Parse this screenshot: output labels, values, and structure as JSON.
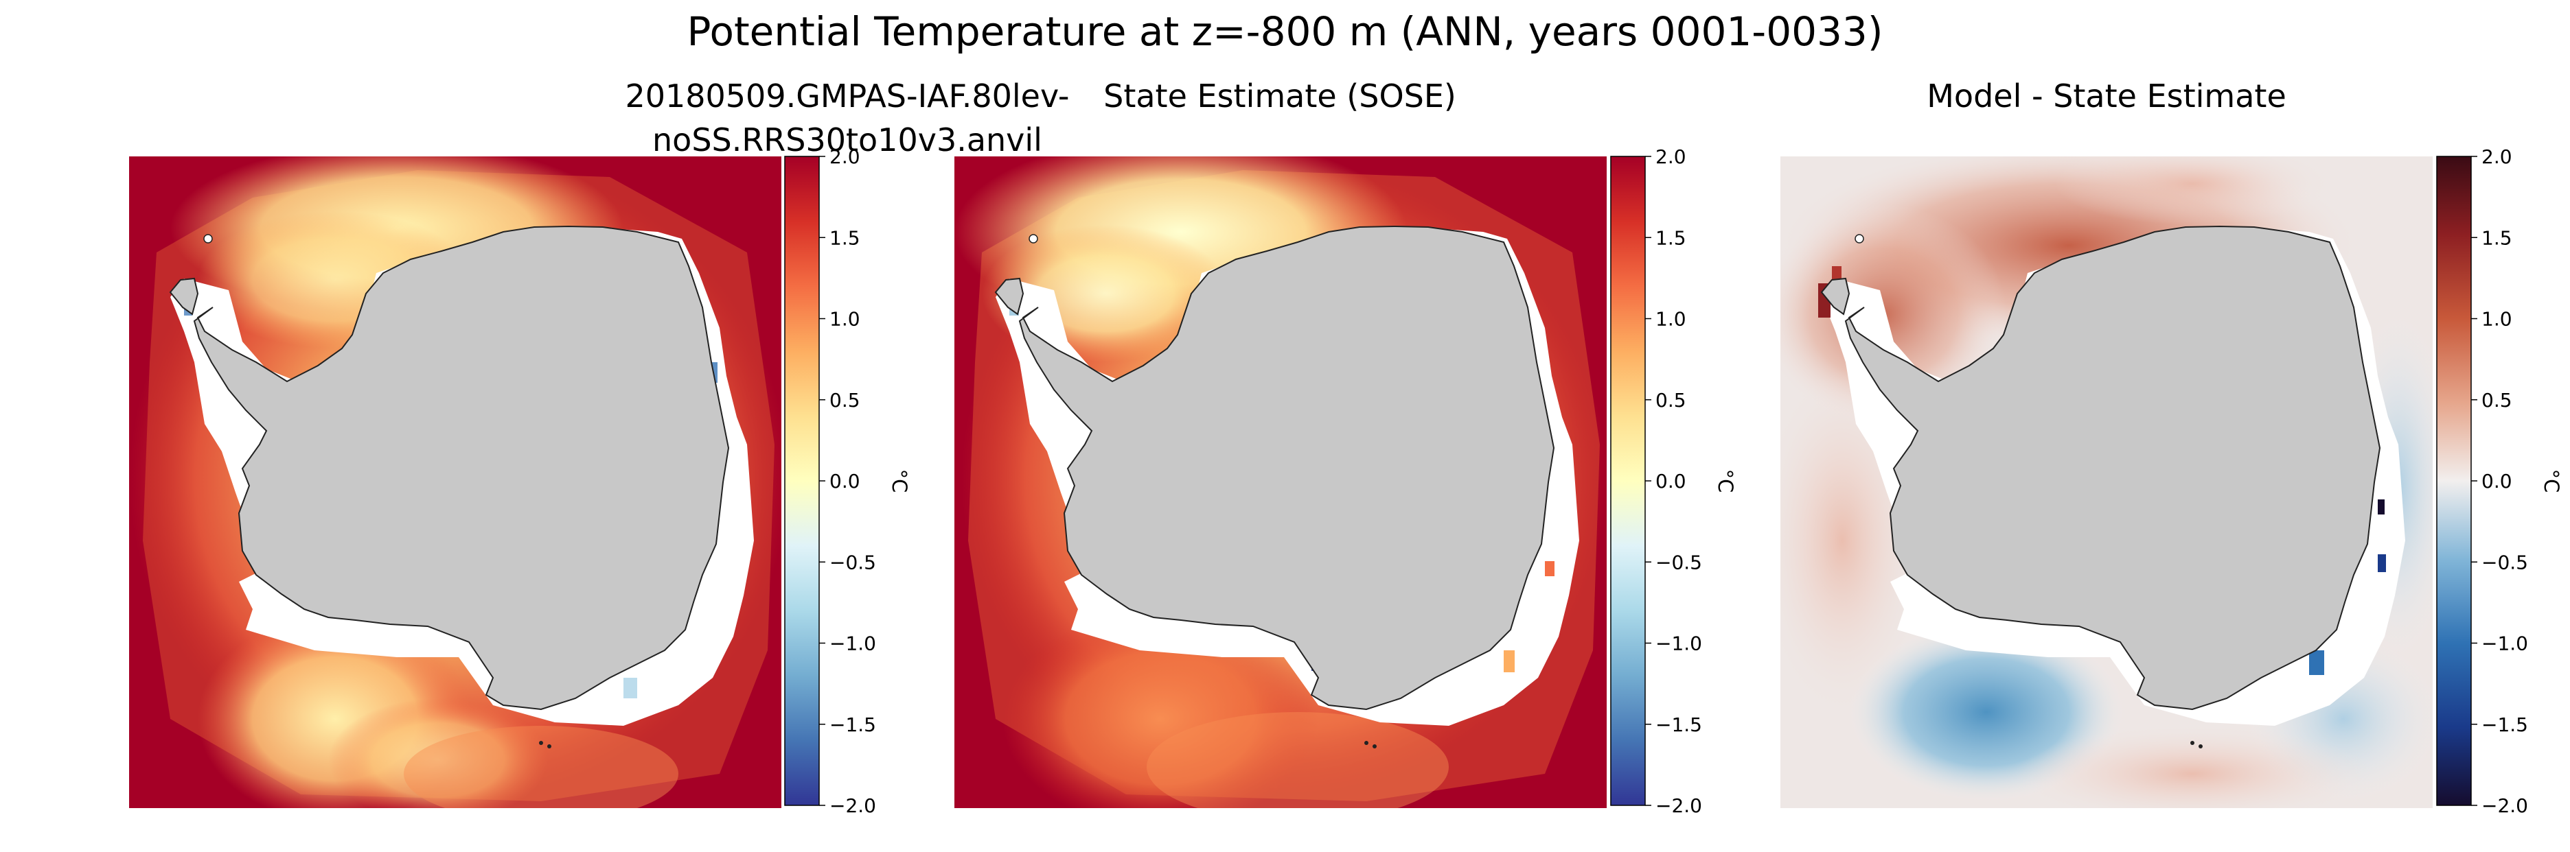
{
  "suptitle": "Potential Temperature at z=-800 m (ANN, years 0001-0033)",
  "panels": [
    {
      "title": "20180509.GMPAS-IAF.80lev-noSS.RRS30to10v3.anvil",
      "colormap": "RdYlBu_r"
    },
    {
      "title": "State Estimate (SOSE)",
      "colormap": "RdYlBu_r"
    },
    {
      "title": "Model - State Estimate",
      "colormap": "RdBu_r"
    }
  ],
  "colorbar": {
    "unit": "°C",
    "range": [
      -2.0,
      2.0
    ],
    "ticks": [
      "2.0",
      "1.5",
      "1.0",
      "0.5",
      "0.0",
      "−0.5",
      "−1.0",
      "−1.5",
      "−2.0"
    ]
  },
  "colors": {
    "land": "#c8c8c8",
    "ice_shelf": "#ffffff",
    "coastline": "#222222"
  },
  "chart_data": [
    {
      "type": "heatmap",
      "title": "20180509.GMPAS-IAF.80lev-noSS.RRS30to10v3.anvil",
      "colorbar_label": "°C",
      "clim": [
        -2.0,
        2.0
      ],
      "colormap": "RdYlBu_r"
    },
    {
      "type": "heatmap",
      "title": "State Estimate (SOSE)",
      "colorbar_label": "°C",
      "clim": [
        -2.0,
        2.0
      ],
      "colormap": "RdYlBu_r"
    },
    {
      "type": "heatmap",
      "title": "Model - State Estimate",
      "colorbar_label": "°C",
      "clim": [
        -2.0,
        2.0
      ],
      "colormap": "RdBu_r"
    }
  ]
}
